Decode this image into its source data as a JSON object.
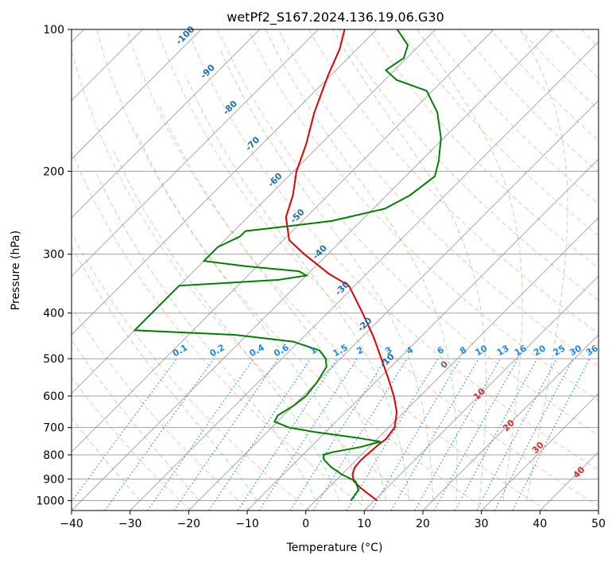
{
  "chart_data": {
    "type": "line",
    "subtype": "skew-T log-P diagram",
    "title": "wetPf2_S167.2024.136.19.06.G30",
    "xlabel": "Temperature (°C)",
    "ylabel": "Pressure (hPa)",
    "xlim": [
      -40,
      50
    ],
    "ylim": [
      1050,
      100
    ],
    "y_scale": "log",
    "grid": true,
    "x_ticks": [
      -40,
      -30,
      -20,
      -10,
      0,
      10,
      20,
      30,
      40,
      50
    ],
    "y_ticks": [
      100,
      200,
      300,
      400,
      500,
      600,
      700,
      800,
      900,
      1000
    ],
    "colors": {
      "temperature": "#e00000",
      "dewpoint": "#008000",
      "dry_adiabat": "#ff8c69",
      "moist_adiabat": "#8fcf8f",
      "mixing_ratio": "#1e88e5",
      "isotherm": "#8c8c8c",
      "wetbulb_label": "#d32f2f",
      "theta_label": "#1f6fb0"
    },
    "series": [
      {
        "name": "",
        "role": "temperature",
        "color": "#e00000",
        "points": [
          {
            "p": 1000,
            "t": 10.5
          },
          {
            "p": 970,
            "t": 8.0
          },
          {
            "p": 940,
            "t": 5.5
          },
          {
            "p": 910,
            "t": 3.2
          },
          {
            "p": 880,
            "t": 1.8
          },
          {
            "p": 850,
            "t": 1.0
          },
          {
            "p": 820,
            "t": 0.8
          },
          {
            "p": 790,
            "t": 1.0
          },
          {
            "p": 760,
            "t": 1.2
          },
          {
            "p": 740,
            "t": 1.5
          },
          {
            "p": 700,
            "t": 1.0
          },
          {
            "p": 650,
            "t": -1.2
          },
          {
            "p": 600,
            "t": -4.5
          },
          {
            "p": 550,
            "t": -8.5
          },
          {
            "p": 500,
            "t": -13.0
          },
          {
            "p": 450,
            "t": -18.0
          },
          {
            "p": 400,
            "t": -24.0
          },
          {
            "p": 350,
            "t": -31.0
          },
          {
            "p": 330,
            "t": -36.5
          },
          {
            "p": 300,
            "t": -44.0
          },
          {
            "p": 280,
            "t": -49.0
          },
          {
            "p": 250,
            "t": -53.5
          },
          {
            "p": 225,
            "t": -56.0
          },
          {
            "p": 200,
            "t": -59.5
          },
          {
            "p": 175,
            "t": -62.5
          },
          {
            "p": 150,
            "t": -66.5
          },
          {
            "p": 125,
            "t": -70.5
          },
          {
            "p": 110,
            "t": -73.0
          },
          {
            "p": 100,
            "t": -75.5
          }
        ]
      },
      {
        "name": "",
        "role": "dewpoint",
        "color": "#008000",
        "points": [
          {
            "p": 1000,
            "t": 6.0
          },
          {
            "p": 950,
            "t": 5.5
          },
          {
            "p": 910,
            "t": 3.5
          },
          {
            "p": 880,
            "t": 0.0
          },
          {
            "p": 850,
            "t": -3.0
          },
          {
            "p": 820,
            "t": -5.5
          },
          {
            "p": 800,
            "t": -6.5
          },
          {
            "p": 790,
            "t": -5.5
          },
          {
            "p": 770,
            "t": -1.5
          },
          {
            "p": 750,
            "t": 1.0
          },
          {
            "p": 735,
            "t": -4.0
          },
          {
            "p": 715,
            "t": -12.0
          },
          {
            "p": 700,
            "t": -17.0
          },
          {
            "p": 680,
            "t": -20.5
          },
          {
            "p": 660,
            "t": -21.0
          },
          {
            "p": 630,
            "t": -20.0
          },
          {
            "p": 600,
            "t": -19.5
          },
          {
            "p": 560,
            "t": -20.0
          },
          {
            "p": 520,
            "t": -21.0
          },
          {
            "p": 500,
            "t": -22.5
          },
          {
            "p": 480,
            "t": -25.0
          },
          {
            "p": 460,
            "t": -31.0
          },
          {
            "p": 445,
            "t": -42.0
          },
          {
            "p": 435,
            "t": -60.0
          },
          {
            "p": 350,
            "t": -60.0
          },
          {
            "p": 345,
            "t": -52.0
          },
          {
            "p": 340,
            "t": -44.0
          },
          {
            "p": 333,
            "t": -40.0
          },
          {
            "p": 326,
            "t": -42.0
          },
          {
            "p": 318,
            "t": -52.0
          },
          {
            "p": 310,
            "t": -60.0
          },
          {
            "p": 290,
            "t": -60.0
          },
          {
            "p": 275,
            "t": -58.0
          },
          {
            "p": 268,
            "t": -58.0
          },
          {
            "p": 265,
            "t": -55.0
          },
          {
            "p": 255,
            "t": -45.0
          },
          {
            "p": 240,
            "t": -38.0
          },
          {
            "p": 225,
            "t": -36.0
          },
          {
            "p": 205,
            "t": -35.0
          },
          {
            "p": 190,
            "t": -37.0
          },
          {
            "p": 170,
            "t": -40.5
          },
          {
            "p": 150,
            "t": -45.5
          },
          {
            "p": 135,
            "t": -51.0
          },
          {
            "p": 128,
            "t": -58.0
          },
          {
            "p": 122,
            "t": -61.5
          },
          {
            "p": 115,
            "t": -60.5
          },
          {
            "p": 108,
            "t": -62.0
          },
          {
            "p": 100,
            "t": -66.5
          }
        ]
      }
    ],
    "mixing_ratio_labels": [
      "0.1",
      "0.2",
      "0.4",
      "0.6",
      "1",
      "1.5",
      "2",
      "3",
      "4",
      "6",
      "8",
      "10",
      "13",
      "16",
      "20",
      "25",
      "30",
      "36"
    ],
    "theta_labels": [
      "-100",
      "-90",
      "-80",
      "-70",
      "-60",
      "-50",
      "-40",
      "-30",
      "-20",
      "-10"
    ],
    "wetbulb_labels": [
      "0",
      "10",
      "20",
      "30",
      "40"
    ]
  }
}
